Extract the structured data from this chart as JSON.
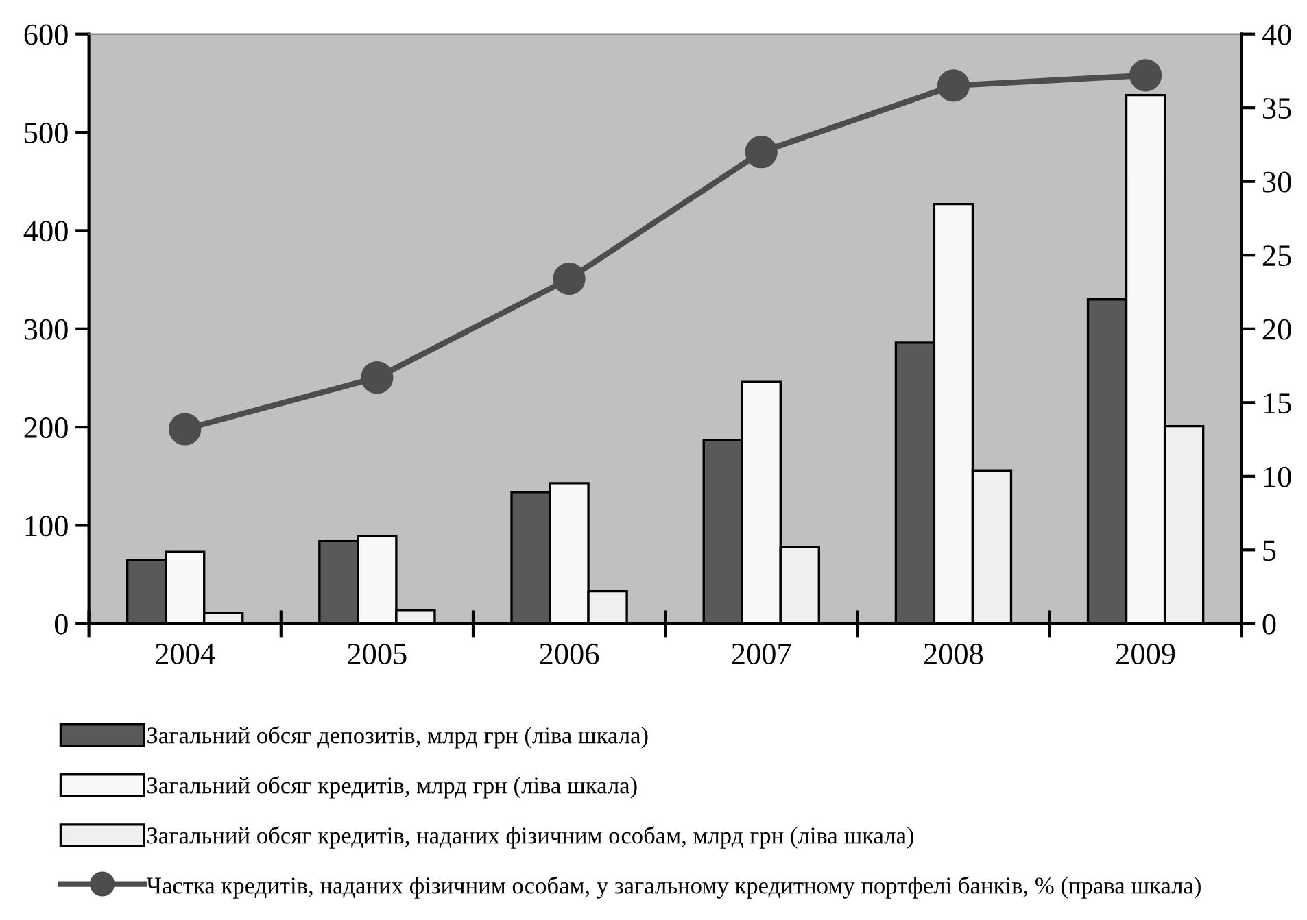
{
  "chart_data": {
    "type": "bar",
    "categories": [
      "2004",
      "2005",
      "2006",
      "2007",
      "2008",
      "2009"
    ],
    "series": [
      {
        "name": "Загальний обсяг депозитів, млрд грн (ліва шкала)",
        "color": "#595959",
        "values": [
          65,
          84,
          134,
          187,
          286,
          330
        ]
      },
      {
        "name": "Загальний обсяг кредитів, млрд грн (ліва шкала)",
        "color": "#f8f8f8",
        "values": [
          73,
          89,
          143,
          246,
          427,
          538
        ]
      },
      {
        "name": "Загальний обсяг кредитів, наданих фізичним особам, млрд грн (ліва шкала)",
        "color": "#efefef",
        "values": [
          11,
          14,
          33,
          78,
          156,
          201
        ]
      },
      {
        "name": "Частка кредитів, наданих фізичним особам, у загальному кредитному портфелі банків, % (права шкала)",
        "color": "#4d4d4d",
        "type": "line",
        "axis": "y2",
        "marker": "circle",
        "line_style": "solid",
        "values": [
          13.2,
          16.7,
          23.4,
          32.0,
          36.5,
          37.2
        ]
      }
    ],
    "ylim": [
      0,
      600
    ],
    "yticks": [
      0,
      100,
      200,
      300,
      400,
      500,
      600
    ],
    "y2lim": [
      0,
      40
    ],
    "y2ticks": [
      0,
      5,
      10,
      15,
      20,
      25,
      30,
      35,
      40
    ],
    "grid": false,
    "legend": "bottom"
  }
}
